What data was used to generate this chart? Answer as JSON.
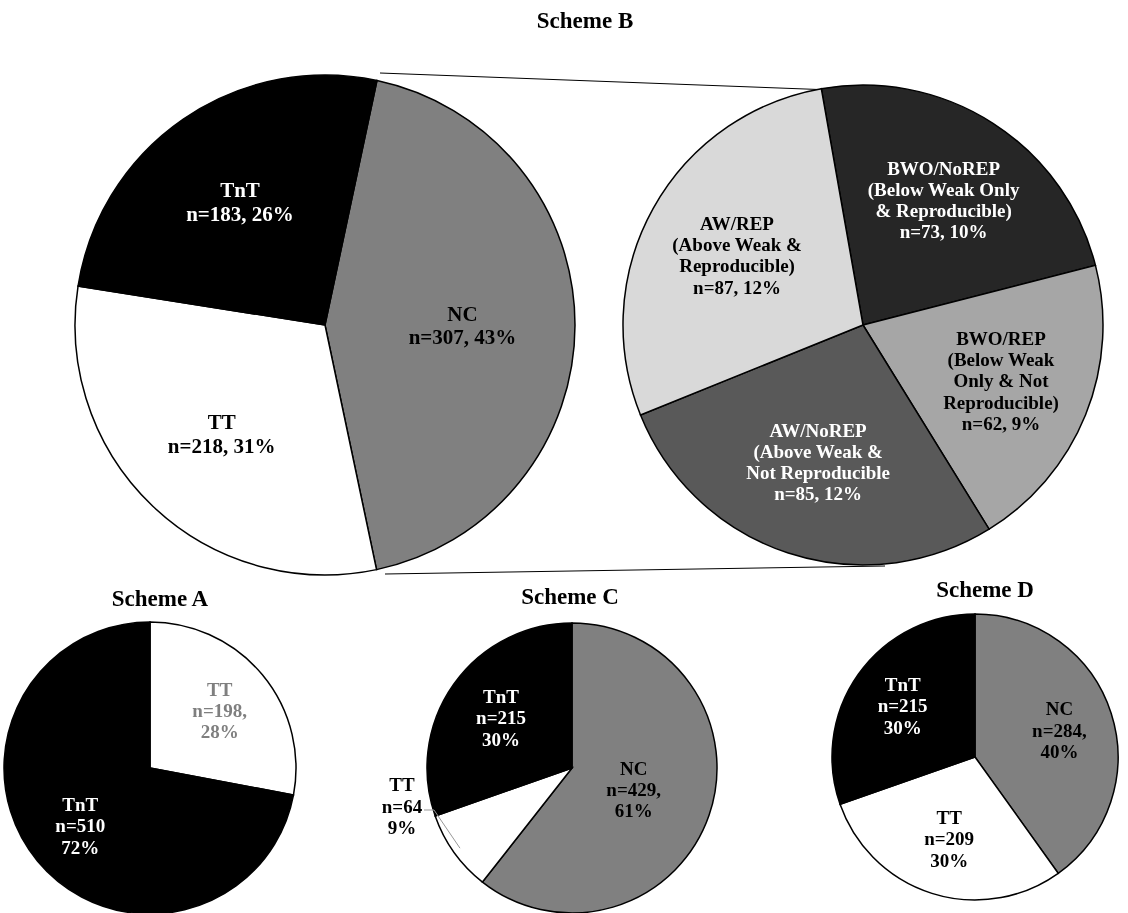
{
  "chart_data": [
    {
      "type": "pie",
      "title": "Scheme B",
      "categories": [
        "NC",
        "TT",
        "TnT"
      ],
      "values": [
        307,
        218,
        183
      ],
      "colors": [
        "#808080",
        "#ffffff",
        "#000000"
      ],
      "value_labels": [
        "n=307, 43%",
        "n=218, 31%",
        "n=183, 26%"
      ]
    },
    {
      "type": "pie",
      "categories": [
        "BWO/NoREP\n(Below Weak Only\n& Reproducible)",
        "BWO/REP\n(Below Weak\nOnly & Not\nReproducible)",
        "AW/NoREP\n(Above Weak &\nNot Reproducible",
        "AW/REP\n(Above Weak &\nReproducible)"
      ],
      "values": [
        73,
        62,
        85,
        87
      ],
      "colors": [
        "#262626",
        "#a6a6a6",
        "#595959",
        "#d9d9d9"
      ],
      "value_labels": [
        "n=73, 10%",
        "n=62, 9%",
        "n=85, 12%",
        "n=87, 12%"
      ]
    },
    {
      "type": "pie",
      "title": "Scheme A",
      "categories": [
        "TT",
        "TnT"
      ],
      "values": [
        198,
        510
      ],
      "colors": [
        "#ffffff",
        "#000000"
      ],
      "value_labels": [
        "n=198,\n28%",
        "n=510\n72%"
      ]
    },
    {
      "type": "pie",
      "title": "Scheme C",
      "categories": [
        "NC",
        "TT",
        "TnT"
      ],
      "values": [
        429,
        64,
        215
      ],
      "colors": [
        "#808080",
        "#ffffff",
        "#000000"
      ],
      "value_labels": [
        "n=429,\n61%",
        "n=64\n9%",
        "n=215\n30%"
      ]
    },
    {
      "type": "pie",
      "title": "Scheme D",
      "categories": [
        "NC",
        "TT",
        "TnT"
      ],
      "values": [
        284,
        209,
        215
      ],
      "colors": [
        "#808080",
        "#ffffff",
        "#000000"
      ],
      "value_labels": [
        "n=284,\n40%",
        "n=209\n30%",
        "n=215\n30%"
      ]
    }
  ]
}
